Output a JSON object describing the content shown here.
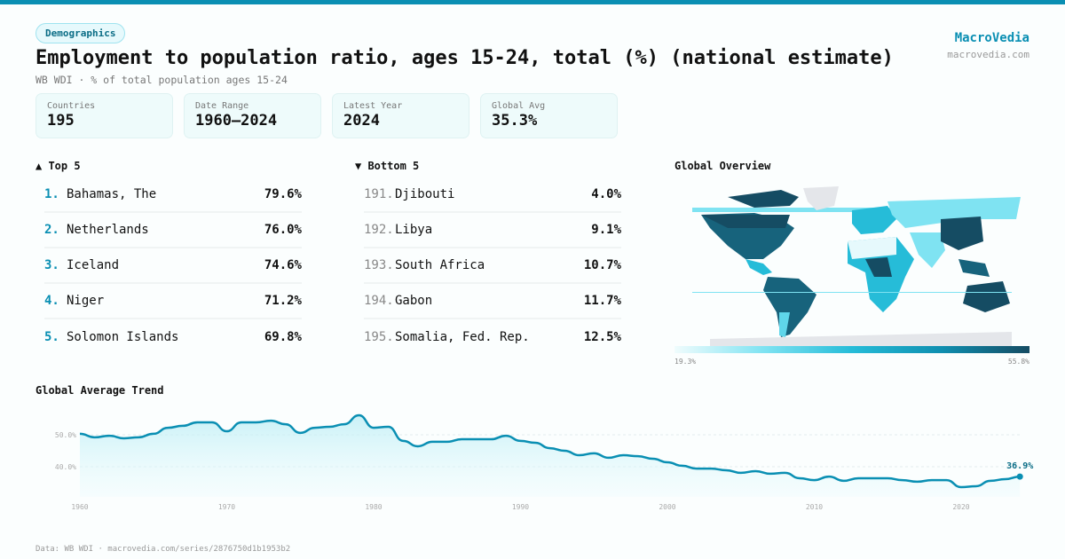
{
  "tag": "Demographics",
  "title": "Employment to population ratio, ages 15-24, total (%) (national estimate)",
  "subtitle": "WB WDI · % of total population ages 15-24",
  "brand": {
    "name": "MacroVedia",
    "url": "macrovedia.com"
  },
  "stats": [
    {
      "label": "Countries",
      "value": "195"
    },
    {
      "label": "Date Range",
      "value": "1960–2024"
    },
    {
      "label": "Latest Year",
      "value": "2024"
    },
    {
      "label": "Global Avg",
      "value": "35.3%"
    }
  ],
  "top5": {
    "heading": "▲ Top 5",
    "items": [
      {
        "rank": "1.",
        "name": "Bahamas, The",
        "value": "79.6%"
      },
      {
        "rank": "2.",
        "name": "Netherlands",
        "value": "76.0%"
      },
      {
        "rank": "3.",
        "name": "Iceland",
        "value": "74.6%"
      },
      {
        "rank": "4.",
        "name": "Niger",
        "value": "71.2%"
      },
      {
        "rank": "5.",
        "name": "Solomon Islands",
        "value": "69.8%"
      }
    ]
  },
  "bottom5": {
    "heading": "▼ Bottom 5",
    "items": [
      {
        "rank": "191.",
        "name": "Djibouti",
        "value": "4.0%"
      },
      {
        "rank": "192.",
        "name": "Libya",
        "value": "9.1%"
      },
      {
        "rank": "193.",
        "name": "South Africa",
        "value": "10.7%"
      },
      {
        "rank": "194.",
        "name": "Gabon",
        "value": "11.7%"
      },
      {
        "rank": "195.",
        "name": "Somalia, Fed. Rep.",
        "value": "12.5%"
      }
    ]
  },
  "map": {
    "title": "Global Overview",
    "legend_min": "19.3%",
    "legend_max": "55.8%",
    "colors": [
      "#f0fcfd",
      "#7fe3f2",
      "#26bcd8",
      "#0f8fb0",
      "#154c63"
    ],
    "no_data_color": "#e4e6ea"
  },
  "chart_data": {
    "type": "area",
    "title": "Global Average Trend",
    "x_ticks": [
      "1960",
      "1970",
      "1980",
      "1990",
      "2000",
      "2010",
      "2020"
    ],
    "y_ticks": [
      "40.0%",
      "50.0%"
    ],
    "grid": true,
    "color": "#0a8fb3",
    "last_label": "36.9%",
    "x": [
      1960,
      1961,
      1962,
      1963,
      1964,
      1965,
      1966,
      1967,
      1968,
      1969,
      1970,
      1971,
      1972,
      1973,
      1974,
      1975,
      1976,
      1977,
      1978,
      1979,
      1980,
      1981,
      1982,
      1983,
      1984,
      1985,
      1986,
      1987,
      1988,
      1989,
      1990,
      1991,
      1992,
      1993,
      1994,
      1995,
      1996,
      1997,
      1998,
      1999,
      2000,
      2001,
      2002,
      2003,
      2004,
      2005,
      2006,
      2007,
      2008,
      2009,
      2010,
      2011,
      2012,
      2013,
      2014,
      2015,
      2016,
      2017,
      2018,
      2019,
      2020,
      2021,
      2022,
      2023,
      2024
    ],
    "values": [
      50.3,
      49.2,
      49.7,
      48.9,
      49.2,
      50.3,
      52.2,
      52.8,
      53.9,
      53.9,
      51.1,
      53.9,
      53.9,
      54.4,
      53.3,
      50.6,
      52.2,
      52.5,
      53.3,
      56.1,
      52.2,
      52.5,
      48.1,
      46.4,
      47.8,
      47.8,
      48.6,
      48.6,
      48.6,
      49.7,
      48.1,
      47.5,
      45.8,
      45.0,
      43.6,
      44.2,
      42.8,
      43.6,
      43.3,
      42.5,
      41.4,
      40.3,
      39.4,
      39.4,
      38.9,
      38.1,
      38.6,
      37.8,
      38.1,
      36.4,
      35.8,
      36.9,
      35.6,
      36.4,
      36.4,
      36.4,
      35.8,
      35.3,
      35.8,
      35.8,
      33.6,
      33.9,
      35.6,
      36.1,
      36.9
    ]
  },
  "footer": "Data: WB WDI · macrovedia.com/series/2876750d1b1953b2"
}
